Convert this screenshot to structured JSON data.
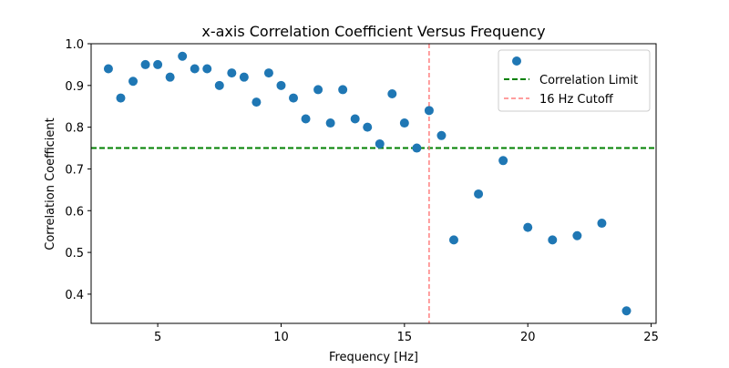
{
  "chart_data": {
    "type": "scatter",
    "title": "x-axis Correlation Coefficient Versus Frequency",
    "xlabel": "Frequency [Hz]",
    "ylabel": "Correlation Coefficient",
    "xlim": [
      2.3,
      25.2
    ],
    "ylim": [
      0.33,
      1.0
    ],
    "xticks": [
      5,
      10,
      15,
      20,
      25
    ],
    "yticks": [
      0.4,
      0.5,
      0.6,
      0.7,
      0.8,
      0.9,
      1.0
    ],
    "grid": false,
    "legend_position": "top-right",
    "series": [
      {
        "name": "",
        "kind": "scatter",
        "color": "#1f77b4",
        "points": [
          [
            3.0,
            0.94
          ],
          [
            3.5,
            0.87
          ],
          [
            4.0,
            0.91
          ],
          [
            4.5,
            0.95
          ],
          [
            5.0,
            0.95
          ],
          [
            5.5,
            0.92
          ],
          [
            6.0,
            0.97
          ],
          [
            6.5,
            0.94
          ],
          [
            7.0,
            0.94
          ],
          [
            7.5,
            0.9
          ],
          [
            8.0,
            0.93
          ],
          [
            8.5,
            0.92
          ],
          [
            9.0,
            0.86
          ],
          [
            9.5,
            0.93
          ],
          [
            10.0,
            0.9
          ],
          [
            10.5,
            0.87
          ],
          [
            11.0,
            0.82
          ],
          [
            11.5,
            0.89
          ],
          [
            12.0,
            0.81
          ],
          [
            12.5,
            0.89
          ],
          [
            13.0,
            0.82
          ],
          [
            13.5,
            0.8
          ],
          [
            14.0,
            0.76
          ],
          [
            14.5,
            0.88
          ],
          [
            15.0,
            0.81
          ],
          [
            15.5,
            0.75
          ],
          [
            16.0,
            0.84
          ],
          [
            16.5,
            0.78
          ],
          [
            17.0,
            0.53
          ],
          [
            18.0,
            0.64
          ],
          [
            19.0,
            0.72
          ],
          [
            20.0,
            0.56
          ],
          [
            21.0,
            0.53
          ],
          [
            22.0,
            0.54
          ],
          [
            23.0,
            0.57
          ],
          [
            24.0,
            0.36
          ]
        ]
      }
    ],
    "reference_lines": [
      {
        "name": "Correlation Limit",
        "orientation": "horizontal",
        "value": 0.75,
        "color": "#008000",
        "style": "dashed"
      },
      {
        "name": "16 Hz Cutoff",
        "orientation": "vertical",
        "value": 16,
        "color": "#ff7f7f",
        "style": "dashed"
      }
    ]
  }
}
